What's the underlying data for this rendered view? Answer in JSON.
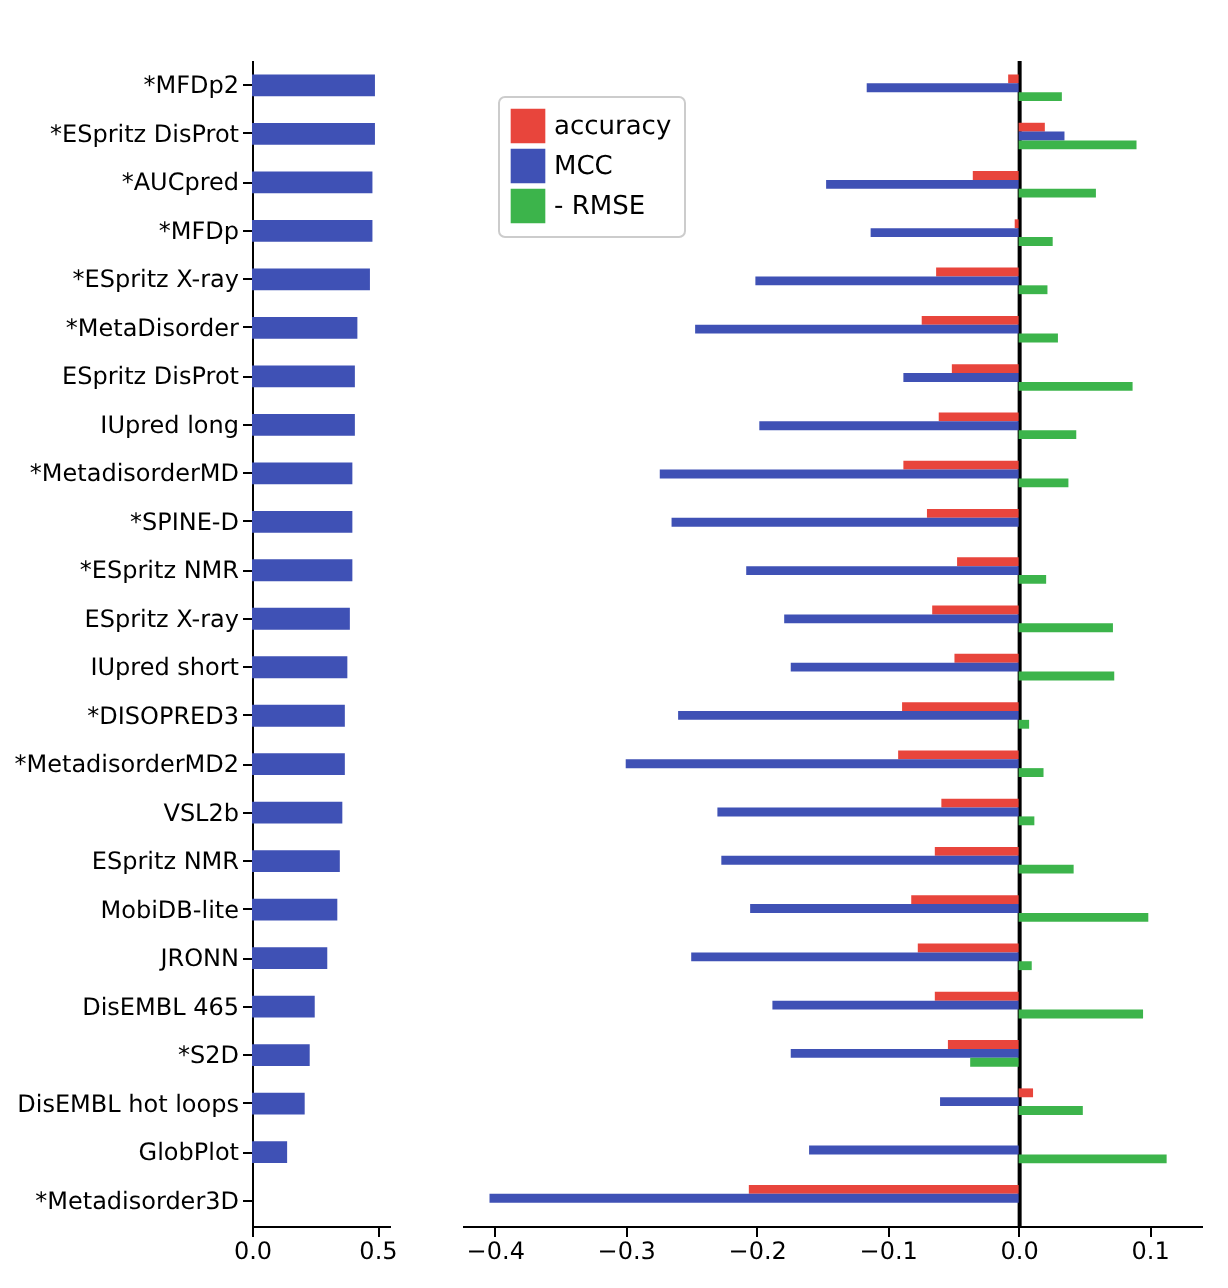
{
  "chart_data": [
    {
      "type": "bar",
      "orientation": "horizontal",
      "categories": [
        "*MFDp2",
        "*ESpritz DisProt",
        "*AUCpred",
        "*MFDp",
        "*ESpritz X-ray",
        "*MetaDisorder",
        "ESpritz DisProt",
        "IUpred long",
        "*MetadisorderMD",
        "*SPINE-D",
        "*ESpritz NMR",
        "ESpritz X-ray",
        "IUpred short",
        "*DISOPRED3",
        "*MetadisorderMD2",
        "VSL2b",
        "ESpritz NMR",
        "MobiDB-lite",
        "JRONN",
        "DisEMBL 465",
        "*S2D",
        "DisEMBL hot loops",
        "GlobPlot",
        "*Metadisorder3D"
      ],
      "values": [
        0.49,
        0.49,
        0.48,
        0.48,
        0.47,
        0.42,
        0.41,
        0.41,
        0.4,
        0.4,
        0.4,
        0.39,
        0.38,
        0.37,
        0.37,
        0.36,
        0.35,
        0.34,
        0.3,
        0.25,
        0.23,
        0.21,
        0.14,
        0
      ],
      "color": "#3f51b5",
      "xlim": [
        0,
        0.55
      ],
      "xticks": [
        {
          "value": 0,
          "label": "0.0"
        },
        {
          "value": 0.5,
          "label": "0.5"
        }
      ]
    },
    {
      "type": "bar",
      "orientation": "horizontal",
      "tick_labels": "x",
      "legend": "top left",
      "categories": [
        null,
        null,
        null,
        null,
        null,
        null,
        null,
        null,
        null,
        null,
        null,
        null,
        null,
        null,
        null,
        null,
        null,
        null,
        null,
        null,
        null,
        null,
        null,
        null
      ],
      "series": [
        {
          "name": "accuracy",
          "color": "#e8453c",
          "values": [
            -0.008,
            0.02,
            -0.035,
            -0.003,
            -0.063,
            -0.074,
            -0.051,
            -0.061,
            -0.088,
            -0.07,
            -0.047,
            -0.066,
            -0.049,
            -0.089,
            -0.092,
            -0.059,
            -0.064,
            -0.082,
            -0.077,
            -0.064,
            -0.054,
            0.011,
            null,
            -0.206
          ]
        },
        {
          "name": "MCC",
          "color": "#3f51b5",
          "values": [
            -0.116,
            0.035,
            -0.147,
            -0.113,
            -0.201,
            -0.247,
            -0.088,
            -0.198,
            -0.274,
            -0.265,
            -0.208,
            -0.179,
            -0.174,
            -0.26,
            -0.3,
            -0.23,
            -0.227,
            -0.205,
            -0.25,
            -0.188,
            -0.174,
            -0.06,
            -0.16,
            -0.404
          ]
        },
        {
          "name": "- RMSE",
          "color": "#3cb44b",
          "values": [
            0.033,
            0.09,
            0.059,
            0.026,
            0.022,
            0.03,
            0.087,
            0.044,
            0.038,
            0,
            0.021,
            0.072,
            0.073,
            0.008,
            0.019,
            0.012,
            0.042,
            0.099,
            0.01,
            0.095,
            -0.037,
            0.049,
            0.113,
            null
          ]
        }
      ],
      "xlim": [
        -0.425,
        0.14
      ],
      "xticks": [
        {
          "value": -0.4,
          "label": "−0.4"
        },
        {
          "value": -0.3,
          "label": "−0.3"
        },
        {
          "value": -0.2,
          "label": "−0.2"
        },
        {
          "value": -0.1,
          "label": "−0.1"
        },
        {
          "value": 0,
          "label": "0.0"
        },
        {
          "value": 0.1,
          "label": "0.1"
        }
      ]
    }
  ]
}
